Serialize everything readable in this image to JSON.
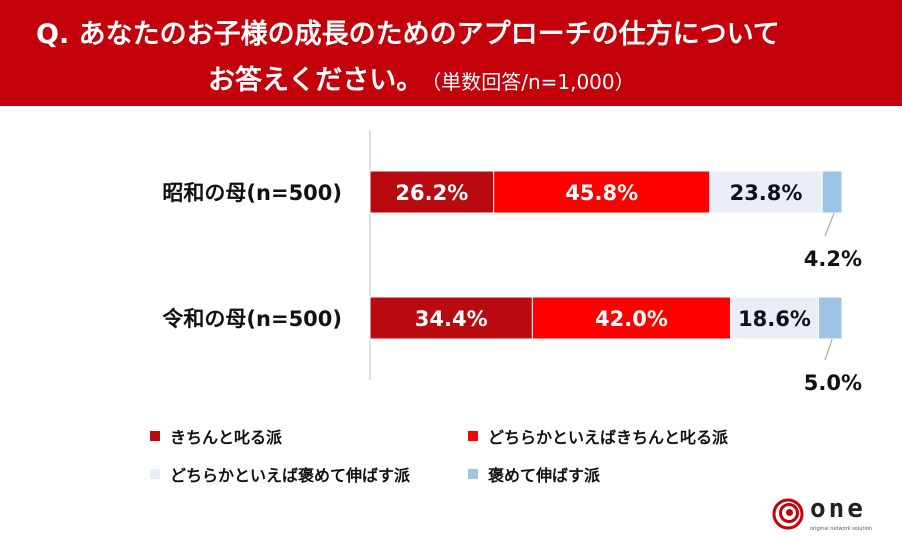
{
  "header": {
    "question_line1": "Q. あなたのお子様の成長のためのアプローチの仕方について",
    "question_line2": "お答えください。",
    "note": "（単数回答/n=1,000）"
  },
  "chart_data": {
    "type": "bar",
    "orientation": "horizontal",
    "stacked": true,
    "unit": "%",
    "categories": [
      "昭和の母(n=500)",
      "令和の母(n=500)"
    ],
    "series": [
      {
        "name": "きちんと叱る派",
        "color": "#b80a0f",
        "values": [
          26.2,
          34.4
        ]
      },
      {
        "name": "どちらかといえばきちんと叱る派",
        "color": "#ff0000",
        "values": [
          45.8,
          42.0
        ]
      },
      {
        "name": "どちらかといえば褒めて伸ばす派",
        "color": "#e9edf6",
        "values": [
          23.8,
          18.6
        ]
      },
      {
        "name": "褒めて伸ばす派",
        "color": "#9dc3e6",
        "values": [
          4.2,
          5.0
        ]
      }
    ],
    "data_labels": [
      [
        "26.2%",
        "45.8%",
        "23.8%",
        "4.2%"
      ],
      [
        "34.4%",
        "42.0%",
        "18.6%",
        "5.0%"
      ]
    ],
    "xlim": [
      0,
      100
    ],
    "grid": false,
    "legend_position": "bottom"
  },
  "legend": {
    "items": [
      {
        "label": "きちんと叱る派",
        "color": "#b80a0f"
      },
      {
        "label": "どちらかといえばきちんと叱る派",
        "color": "#ff0000"
      },
      {
        "label": "どちらかといえば褒めて伸ばす派",
        "color": "#e9edf6"
      },
      {
        "label": "褒めて伸ばす派",
        "color": "#9dc3e6"
      }
    ]
  },
  "logo": {
    "word": "one",
    "tagline": "original network solution"
  }
}
